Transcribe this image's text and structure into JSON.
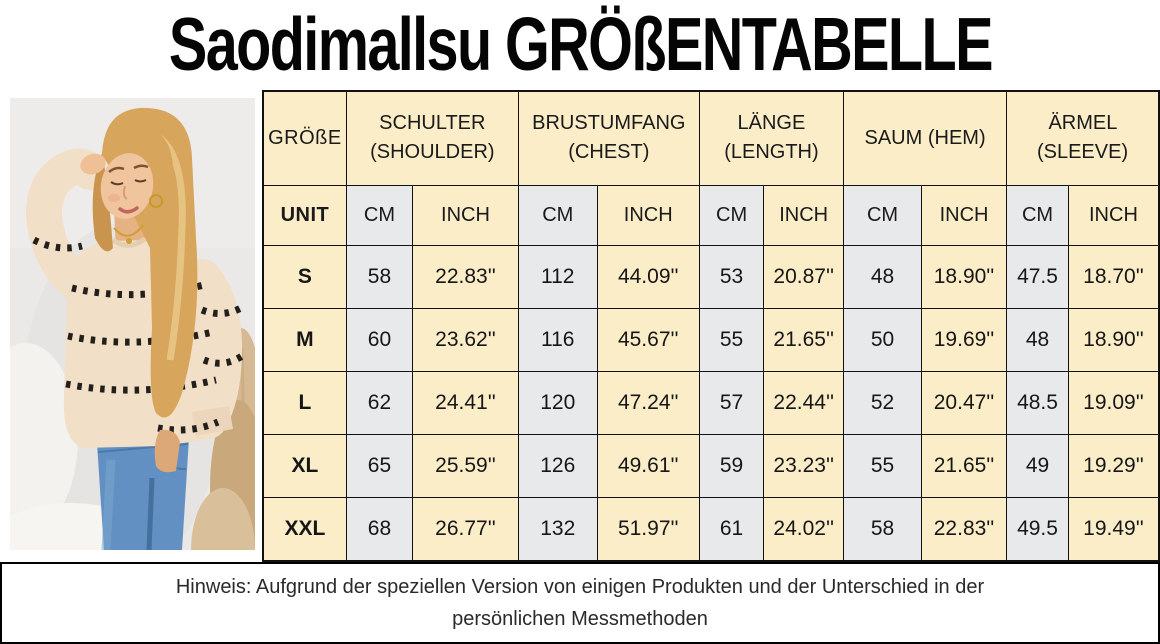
{
  "header": {
    "title": "Saodimallsu GRÖßENTABELLE"
  },
  "chart_data": {
    "type": "table",
    "title": "Saodimallsu GRÖßENTABELLE",
    "corner_label": "GRÖßE",
    "unit_label": "UNIT",
    "units": [
      "CM",
      "INCH"
    ],
    "column_groups": [
      {
        "name": "SCHULTER",
        "sub": "(SHOULDER)"
      },
      {
        "name": "BRUSTUMFANG",
        "sub": "(CHEST)"
      },
      {
        "name": "LÄNGE",
        "sub": "(LENGTH)"
      },
      {
        "name": "SAUM",
        "sub": "(HEM)"
      },
      {
        "name": "ÄRMEL",
        "sub": "(SLEEVE)"
      }
    ],
    "sizes": [
      "S",
      "M",
      "L",
      "XL",
      "XXL"
    ],
    "rows": [
      [
        "58",
        "22.83''",
        "112",
        "44.09''",
        "53",
        "20.87''",
        "48",
        "18.90''",
        "47.5",
        "18.70''"
      ],
      [
        "60",
        "23.62''",
        "116",
        "45.67''",
        "55",
        "21.65''",
        "50",
        "19.69''",
        "48",
        "18.90''"
      ],
      [
        "62",
        "24.41''",
        "120",
        "47.24''",
        "57",
        "22.44''",
        "52",
        "20.47''",
        "48.5",
        "19.09''"
      ],
      [
        "65",
        "25.59''",
        "126",
        "49.61''",
        "59",
        "23.23''",
        "55",
        "21.65''",
        "49",
        "19.29''"
      ],
      [
        "68",
        "26.77''",
        "132",
        "51.97''",
        "61",
        "24.02''",
        "58",
        "22.83''",
        "49.5",
        "19.49''"
      ]
    ]
  },
  "note": "Hinweis: Aufgrund der speziellen Version von einigen Produkten und der Unterschied in der persönlichen Messmethoden",
  "colors": {
    "cell_yellow": "#FBEDC8",
    "cell_gray": "#E8E9EB",
    "table_border": "#111111"
  }
}
